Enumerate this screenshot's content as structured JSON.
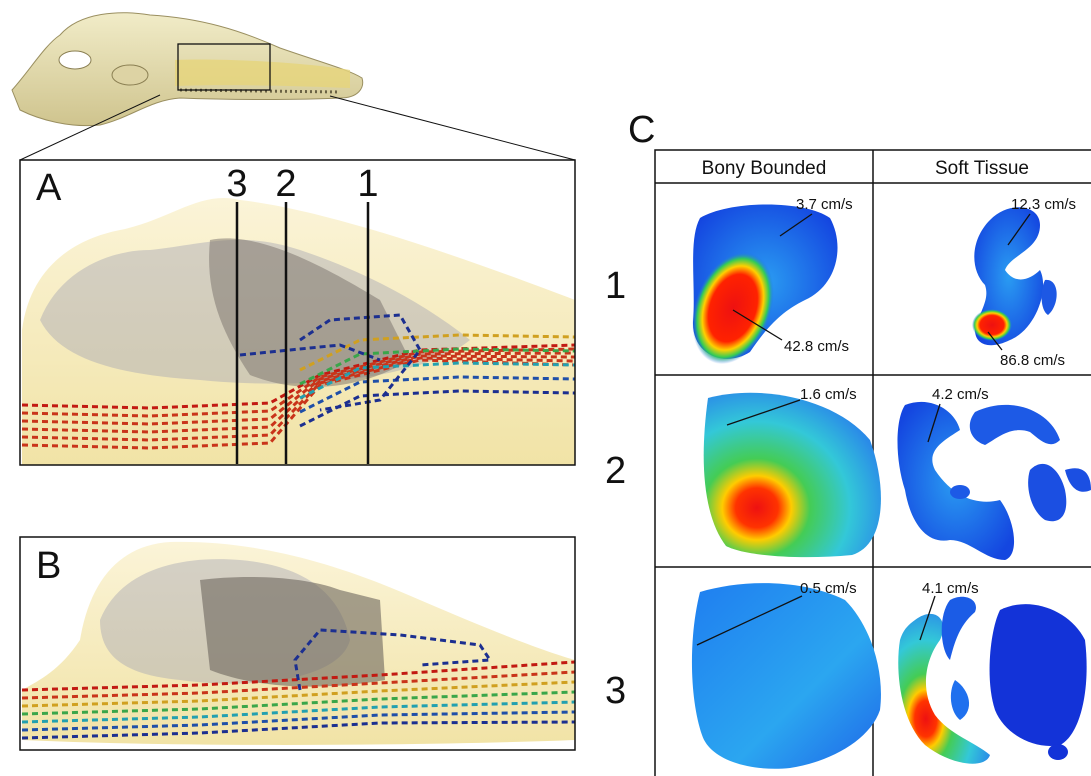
{
  "panel_a": {
    "label": "A",
    "section_labels": [
      "3",
      "2",
      "1"
    ]
  },
  "panel_b": {
    "label": "B"
  },
  "panel_c": {
    "label": "C",
    "columns": [
      "Bony Bounded",
      "Soft Tissue"
    ],
    "rows": [
      {
        "label": "1",
        "bony": [
          "3.7 cm/s",
          "42.8 cm/s"
        ],
        "soft": [
          "12.3 cm/s",
          "86.8 cm/s"
        ]
      },
      {
        "label": "2",
        "bony": [
          "1.6 cm/s"
        ],
        "soft": [
          "4.2 cm/s"
        ]
      },
      {
        "label": "3",
        "bony": [
          "0.5 cm/s"
        ],
        "soft": [
          "4.1 cm/s"
        ]
      }
    ]
  }
}
